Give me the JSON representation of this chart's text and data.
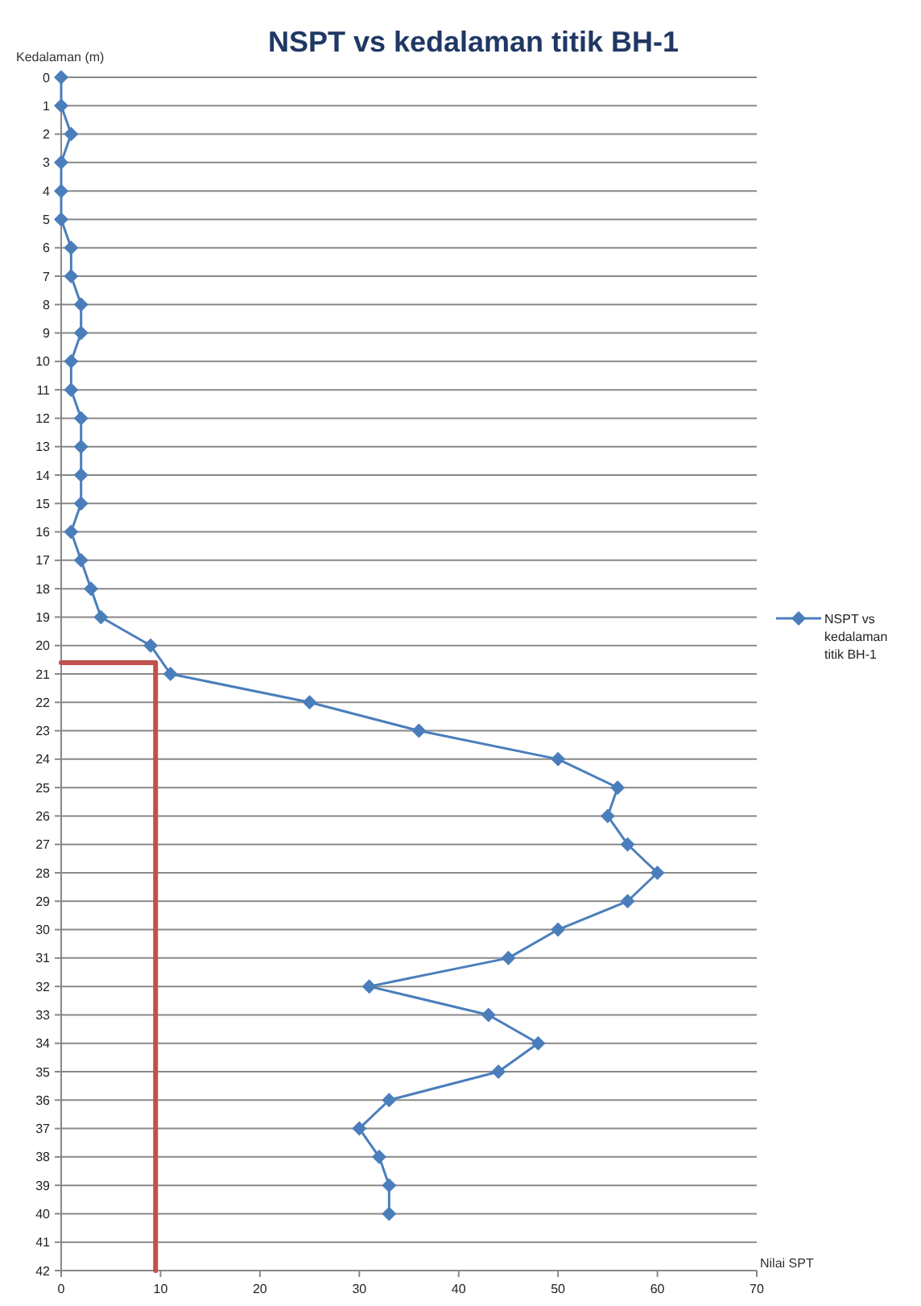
{
  "chart_data": {
    "type": "line",
    "title": "NSPT vs kedalaman titik BH-1",
    "xlabel": "Nilai SPT",
    "ylabel": "Kedalaman  (m)",
    "xlim": [
      0,
      70
    ],
    "xticks": [
      0,
      10,
      20,
      30,
      40,
      50,
      60,
      70
    ],
    "ylim": [
      42,
      0
    ],
    "yticks": [
      0,
      1,
      2,
      3,
      4,
      5,
      6,
      7,
      8,
      9,
      10,
      11,
      12,
      13,
      14,
      15,
      16,
      17,
      18,
      19,
      20,
      21,
      22,
      23,
      24,
      25,
      26,
      27,
      28,
      29,
      30,
      31,
      32,
      33,
      34,
      35,
      36,
      37,
      38,
      39,
      40,
      41,
      42
    ],
    "grid": "y",
    "legend": "right",
    "series": [
      {
        "name": "NSPT vs kedalaman titik BH-1",
        "color": "#4a7ebb",
        "marker": "diamond",
        "x": [
          0,
          0,
          1,
          0,
          0,
          0,
          1,
          1,
          2,
          2,
          1,
          1,
          2,
          2,
          2,
          2,
          1,
          2,
          3,
          4,
          9,
          11,
          25,
          36,
          50,
          56,
          55,
          57,
          60,
          57,
          50,
          45,
          31,
          43,
          48,
          44,
          33,
          30,
          32,
          33,
          33
        ],
        "values": [
          0,
          1,
          2,
          3,
          4,
          5,
          6,
          7,
          8,
          9,
          10,
          11,
          12,
          13,
          14,
          15,
          16,
          17,
          18,
          19,
          20,
          21,
          22,
          23,
          24,
          25,
          26,
          27,
          28,
          29,
          30,
          31,
          32,
          33,
          34,
          35,
          36,
          37,
          38,
          39,
          40
        ]
      },
      {
        "color": "#c0504d",
        "marker": "none",
        "x": [
          0,
          9.5,
          9.5
        ],
        "values": [
          20.6,
          20.6,
          42
        ]
      }
    ]
  }
}
